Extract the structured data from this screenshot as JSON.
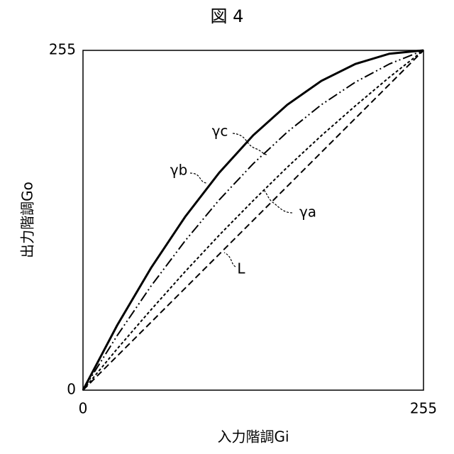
{
  "chart_data": {
    "type": "line",
    "title": "図 4",
    "x_label": "入力階調Gi",
    "y_label": "出力階調Go",
    "x": [
      0,
      25.5,
      51,
      76.5,
      102,
      127.5,
      153,
      178.5,
      204,
      229.5,
      255
    ],
    "series": [
      {
        "name": "γb",
        "color": "#000000",
        "dash": "solid",
        "width": 3,
        "values": [
          0,
          48.5,
          91.8,
          130.1,
          163.2,
          191.3,
          214.2,
          232.1,
          244.8,
          252.5,
          255
        ]
      },
      {
        "name": "γc",
        "color": "#000000",
        "dash": "dash-dot",
        "width": 2,
        "values": [
          0,
          40.8,
          78.2,
          112.1,
          142.8,
          170,
          193.7,
          214.2,
          231.2,
          244.8,
          255
        ]
      },
      {
        "name": "γa",
        "color": "#000000",
        "dash": "dotted",
        "width": 2,
        "values": [
          0,
          30.9,
          60.4,
          89,
          116.3,
          142.3,
          167.3,
          191,
          213.4,
          234.9,
          255
        ]
      },
      {
        "name": "L",
        "color": "#000000",
        "dash": "dashed",
        "width": 2,
        "values": [
          0,
          25.5,
          51,
          76.5,
          102,
          127.5,
          153,
          178.5,
          204,
          229.5,
          255
        ]
      }
    ],
    "xlim": [
      0,
      255
    ],
    "ylim": [
      0,
      255
    ],
    "xticks": [
      0,
      255
    ],
    "yticks": [
      0,
      255
    ],
    "grid": false
  }
}
